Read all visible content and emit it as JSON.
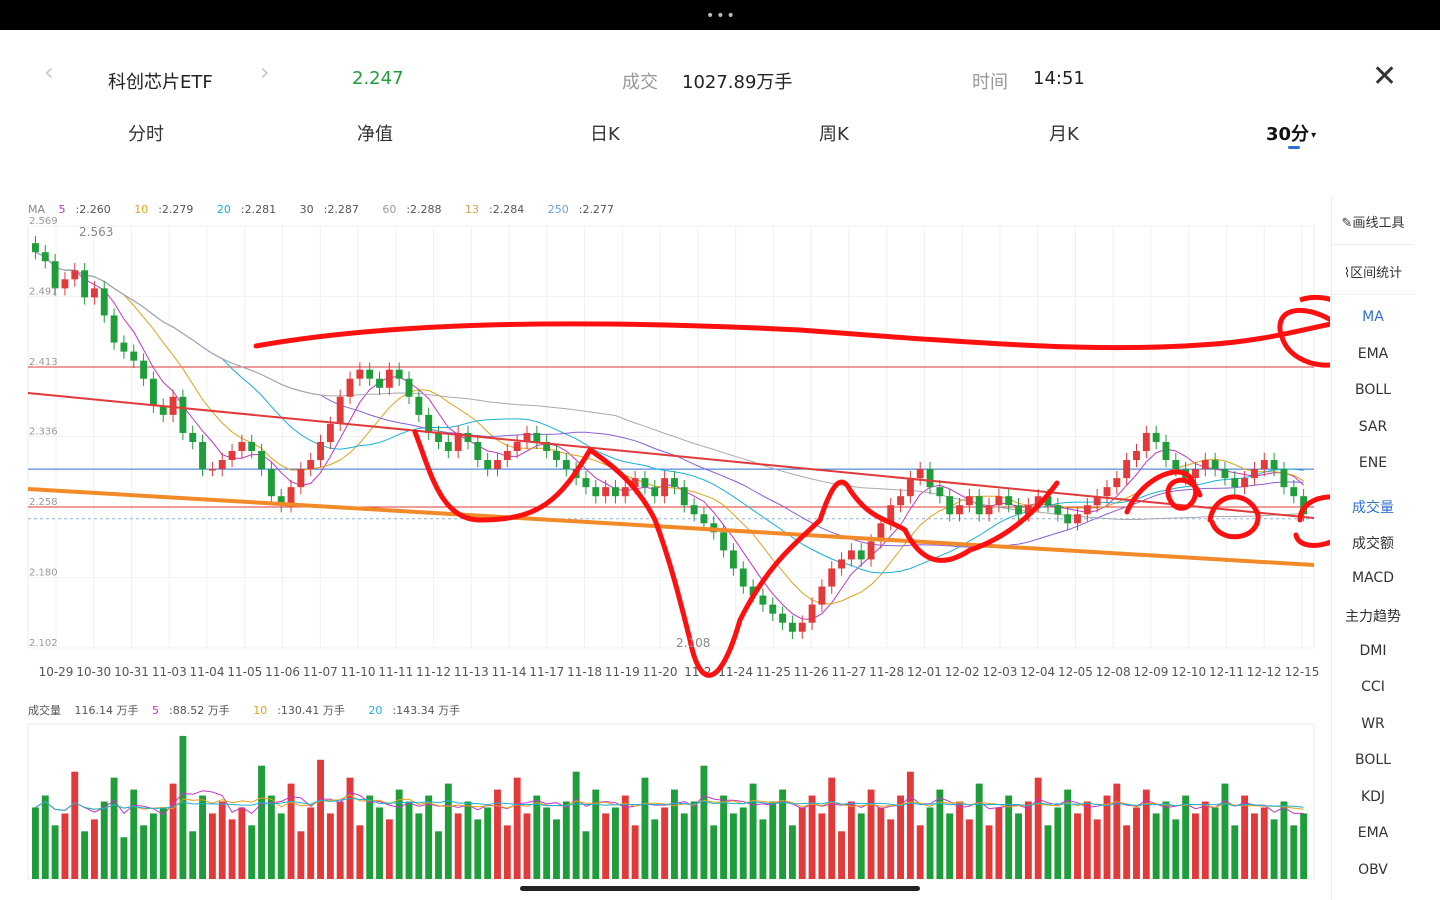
{
  "status": {
    "dots": "•••"
  },
  "header": {
    "prev_icon": "chevron-left-icon",
    "next_icon": "chevron-right-icon",
    "title": "科创芯片ETF",
    "price": "2.247",
    "volume_label": "成交",
    "volume_value": "1027.89万手",
    "time_label": "时间",
    "time_value": "14:51",
    "close_icon": "close-icon",
    "price_color": "#1f9d3a"
  },
  "tabs": [
    {
      "label": "分时"
    },
    {
      "label": "净值"
    },
    {
      "label": "日K"
    },
    {
      "label": "周K"
    },
    {
      "label": "月K"
    },
    {
      "label": "30分",
      "active": true
    }
  ],
  "ma_legend": {
    "prefix": "MA",
    "items": [
      {
        "key": "5",
        "value": ":2.260",
        "color": "#c236c8"
      },
      {
        "key": "10",
        "value": ":2.279",
        "color": "#e0a21a"
      },
      {
        "key": "20",
        "value": ":2.281",
        "color": "#1ab0d8"
      },
      {
        "key": "30",
        "value": ":2.287",
        "color": "#8a5ed8"
      },
      {
        "key": "60",
        "value": ":2.288",
        "color": "#999999"
      },
      {
        "key": "13",
        "value": ":2.284",
        "color": "#d8a050"
      },
      {
        "key": "250",
        "value": ":2.277",
        "color": "#6aa0e0"
      }
    ]
  },
  "volume_legend": {
    "prefix": "成交量",
    "value": "116.14 万手",
    "items": [
      {
        "key": "5",
        "value": ":88.52 万手",
        "color": "#c236c8"
      },
      {
        "key": "10",
        "value": ":130.41 万手",
        "color": "#e0a21a"
      },
      {
        "key": "20",
        "value": ":143.34 万手",
        "color": "#1ab0d8"
      }
    ]
  },
  "chart_data": {
    "type": "candlestick",
    "y_ticks": [
      "2.569",
      "2.491",
      "2.413",
      "2.336",
      "2.258",
      "2.180",
      "2.102"
    ],
    "ylim": [
      2.102,
      2.569
    ],
    "annotations": {
      "high": "2.563",
      "low": "2.108"
    },
    "x_ticks": [
      "10-29",
      "10-30",
      "10-31",
      "11-03",
      "11-04",
      "11-05",
      "11-06",
      "11-07",
      "11-10",
      "11-11",
      "11-12",
      "11-13",
      "11-14",
      "11-17",
      "11-18",
      "11-19",
      "11-20",
      "11-2",
      "11-24",
      "11-25",
      "11-26",
      "11-27",
      "11-28",
      "12-01",
      "12-02",
      "12-03",
      "12-04",
      "12-05",
      "12-08",
      "12-09",
      "12-10",
      "12-11",
      "12-12",
      "12-15"
    ],
    "close_series": [
      2.54,
      2.53,
      2.5,
      2.51,
      2.52,
      2.49,
      2.5,
      2.47,
      2.44,
      2.43,
      2.42,
      2.4,
      2.37,
      2.36,
      2.38,
      2.34,
      2.33,
      2.3,
      2.3,
      2.31,
      2.32,
      2.33,
      2.32,
      2.3,
      2.27,
      2.26,
      2.28,
      2.3,
      2.31,
      2.33,
      2.35,
      2.38,
      2.4,
      2.41,
      2.4,
      2.39,
      2.41,
      2.4,
      2.38,
      2.36,
      2.34,
      2.33,
      2.32,
      2.34,
      2.33,
      2.31,
      2.3,
      2.31,
      2.32,
      2.33,
      2.34,
      2.33,
      2.32,
      2.31,
      2.3,
      2.29,
      2.28,
      2.27,
      2.28,
      2.27,
      2.28,
      2.29,
      2.28,
      2.27,
      2.29,
      2.28,
      2.26,
      2.25,
      2.24,
      2.23,
      2.21,
      2.19,
      2.17,
      2.16,
      2.15,
      2.14,
      2.13,
      2.12,
      2.13,
      2.15,
      2.17,
      2.19,
      2.2,
      2.21,
      2.2,
      2.22,
      2.24,
      2.26,
      2.27,
      2.29,
      2.3,
      2.28,
      2.27,
      2.25,
      2.26,
      2.27,
      2.25,
      2.26,
      2.27,
      2.26,
      2.25,
      2.26,
      2.27,
      2.26,
      2.25,
      2.24,
      2.25,
      2.26,
      2.27,
      2.28,
      2.29,
      2.31,
      2.32,
      2.34,
      2.33,
      2.31,
      2.3,
      2.29,
      2.3,
      2.31,
      2.3,
      2.29,
      2.28,
      2.29,
      2.3,
      2.31,
      2.3,
      2.28,
      2.27,
      2.25
    ],
    "hlines": [
      {
        "value": 2.413,
        "color": "#e23a3a"
      },
      {
        "value": 2.258,
        "color": "#e23a3a"
      },
      {
        "value": 2.3,
        "color": "#2f6fd6"
      }
    ],
    "volume_series": [
      60,
      70,
      45,
      55,
      90,
      40,
      50,
      65,
      85,
      35,
      75,
      45,
      55,
      60,
      80,
      120,
      40,
      70,
      55,
      65,
      50,
      60,
      45,
      95,
      70,
      55,
      80,
      40,
      60,
      100,
      55,
      65,
      85,
      45,
      70,
      60,
      50,
      75,
      65,
      55,
      70,
      40,
      80,
      55,
      65,
      50,
      60,
      75,
      45,
      85,
      55,
      70,
      60,
      50,
      65,
      90,
      40,
      75,
      55,
      60,
      70,
      45,
      85,
      50,
      60,
      75,
      55,
      65,
      95,
      45,
      70,
      55,
      60,
      80,
      50,
      65,
      75,
      45,
      60,
      70,
      55,
      85,
      40,
      65,
      55,
      75,
      60,
      50,
      70,
      90,
      45,
      60,
      75,
      55,
      65,
      50,
      80,
      45,
      60,
      70,
      55,
      65,
      85,
      45,
      60,
      75,
      55,
      65,
      50,
      70,
      80,
      45,
      60,
      75,
      55,
      65,
      50,
      70,
      55,
      65,
      60,
      80,
      45,
      70,
      55,
      60,
      50,
      65,
      45,
      55
    ],
    "volume_ylim": [
      0,
      130
    ]
  },
  "sidebar": {
    "tools": [
      {
        "label": "画线工具",
        "icon": "pen-icon"
      },
      {
        "label": "区间统计",
        "icon": "range-stats-icon"
      }
    ],
    "items": [
      "MA",
      "EMA",
      "BOLL",
      "SAR",
      "ENE",
      "成交量",
      "成交额",
      "MACD",
      "主力趋势",
      "DMI",
      "CCI",
      "WR",
      "BOLL",
      "KDJ",
      "EMA",
      "OBV"
    ]
  },
  "colors": {
    "up": "#e23a3a",
    "down": "#1f9d3a",
    "ink": "#ff1010",
    "support": "#f28a2a",
    "accent": "#2f6fd6"
  }
}
